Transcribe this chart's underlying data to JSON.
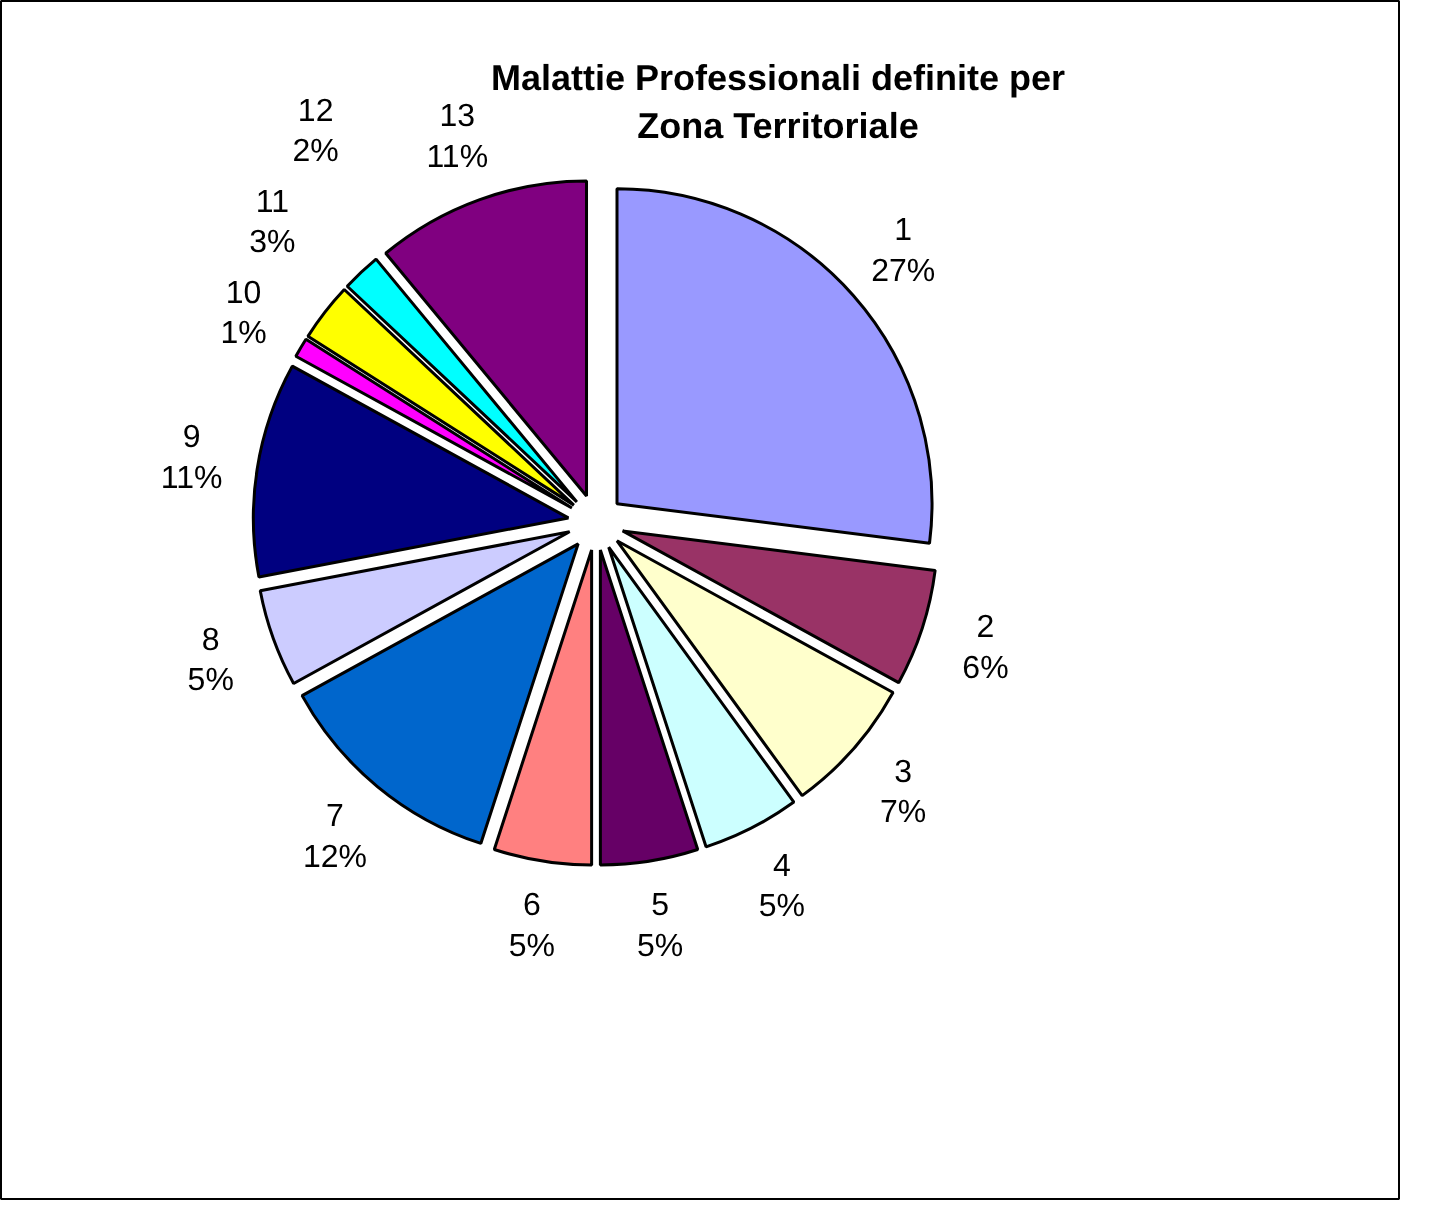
{
  "chart_data": {
    "type": "pie",
    "title": "Malattie Professionali definite per\nZona Territoriale",
    "categories": [
      "1",
      "2",
      "3",
      "4",
      "5",
      "6",
      "7",
      "8",
      "9",
      "10",
      "11",
      "12",
      "13"
    ],
    "values": [
      27,
      6,
      7,
      5,
      5,
      5,
      12,
      5,
      11,
      1,
      3,
      2,
      11
    ],
    "colors": [
      "#9999ff",
      "#993366",
      "#ffffcc",
      "#ccffff",
      "#660066",
      "#ff8080",
      "#0066cc",
      "#ccccff",
      "#000080",
      "#ff00ff",
      "#ffff00",
      "#00ffff",
      "#800080"
    ],
    "value_labels": [
      "27%",
      "6%",
      "7%",
      "5%",
      "5%",
      "5%",
      "12%",
      "5%",
      "11%",
      "1%",
      "3%",
      "2%",
      "11%"
    ]
  }
}
